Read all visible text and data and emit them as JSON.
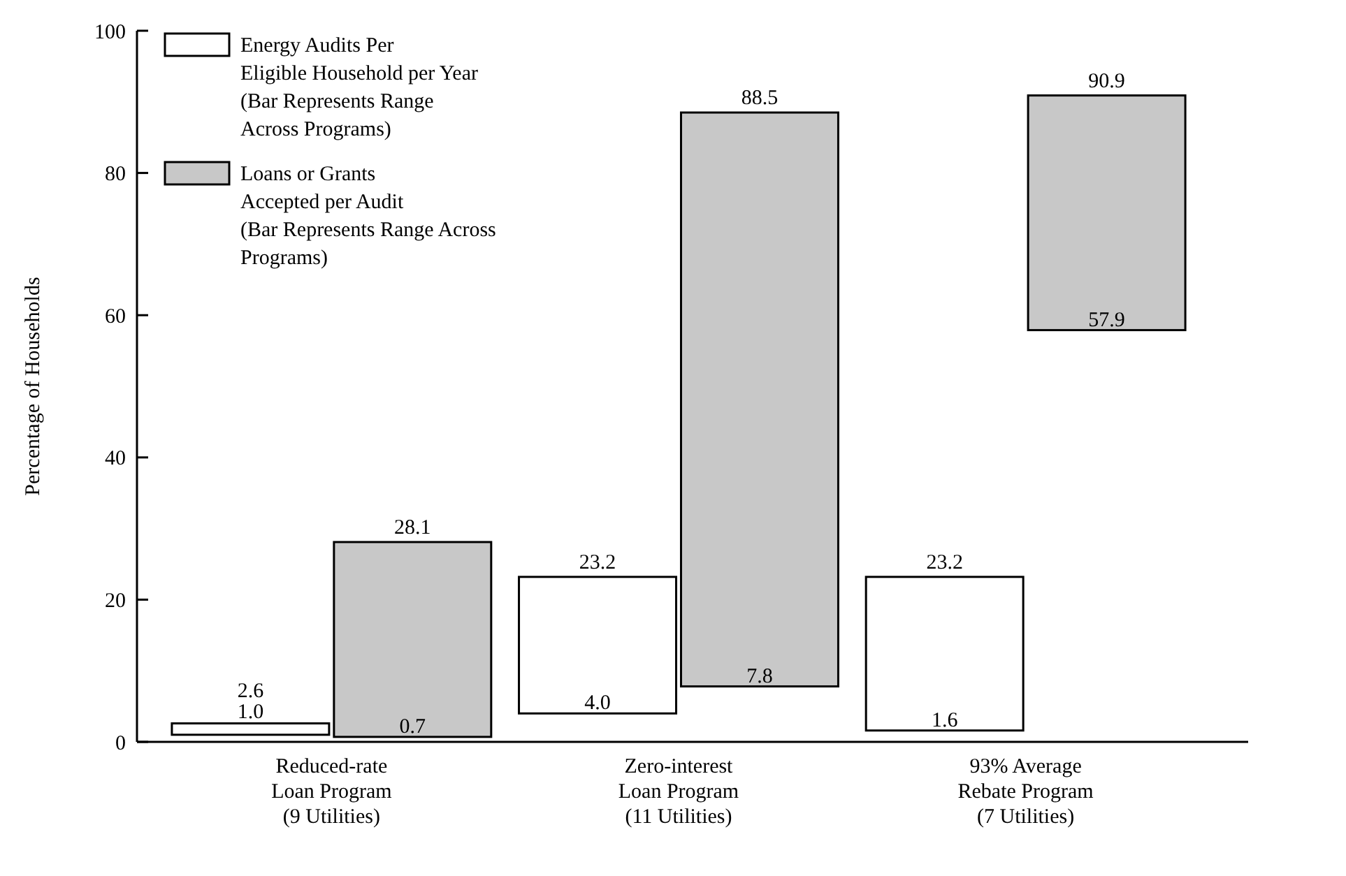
{
  "chart_data": {
    "type": "bar",
    "ylabel": "Percentage of Households",
    "categories": [
      "Reduced-rate\nLoan Program\n(9 Utilities)",
      "Zero-interest\nLoan Program\n(11 Utilities)",
      "93% Average\nRebate Program\n(7 Utilities)"
    ],
    "series": [
      {
        "name": "Energy Audits Per\nEligible Household per Year\n(Bar Represents Range\nAcross Programs)",
        "color": "#ffffff",
        "base": [
          1.0,
          4.0,
          1.6
        ],
        "values": [
          1.6,
          19.2,
          21.6
        ]
      },
      {
        "name": "Loans or Grants\nAccepted per Audit\n(Bar Represents Range Across\nPrograms)",
        "color": "#c8c8c8",
        "base": [
          0.7,
          7.8,
          57.9
        ],
        "values": [
          27.4,
          80.7,
          33.0
        ]
      }
    ],
    "annotations": [
      {
        "text": "2.6",
        "y": 2.6
      },
      {
        "text": "1.0",
        "y": 1.0
      },
      {
        "text": "28.1",
        "x": "Reduced-rate\nLoan Program\n(9 Utilities)",
        "y": 28.1
      },
      {
        "text": "0.7",
        "y": 0.7
      },
      {
        "text": "23.2",
        "x": "Zero-interest\nLoan Program\n(11 Utilities)",
        "y": 23.2
      },
      {
        "text": "4.0",
        "y": 4.0
      },
      {
        "text": "88.5",
        "x": "Zero-interest\nLoan Program\n(11 Utilities)",
        "y": 88.5
      },
      {
        "text": "7.8",
        "y": 7.8
      },
      {
        "text": "23.2",
        "x": "93% Average\nRebate Program\n(7 Utilities)",
        "y": 23.2
      },
      {
        "text": "1.6",
        "y": 1.6
      },
      {
        "text": "90.9",
        "x": "93% Average\nRebate Program\n(7 Utilities)",
        "y": 90.9
      },
      {
        "text": "57.9",
        "y": 57.9
      }
    ],
    "ylim": [
      0,
      100
    ],
    "yticks": [
      0,
      20,
      40,
      60,
      80,
      100
    ],
    "legend": "top left",
    "grid": false
  }
}
